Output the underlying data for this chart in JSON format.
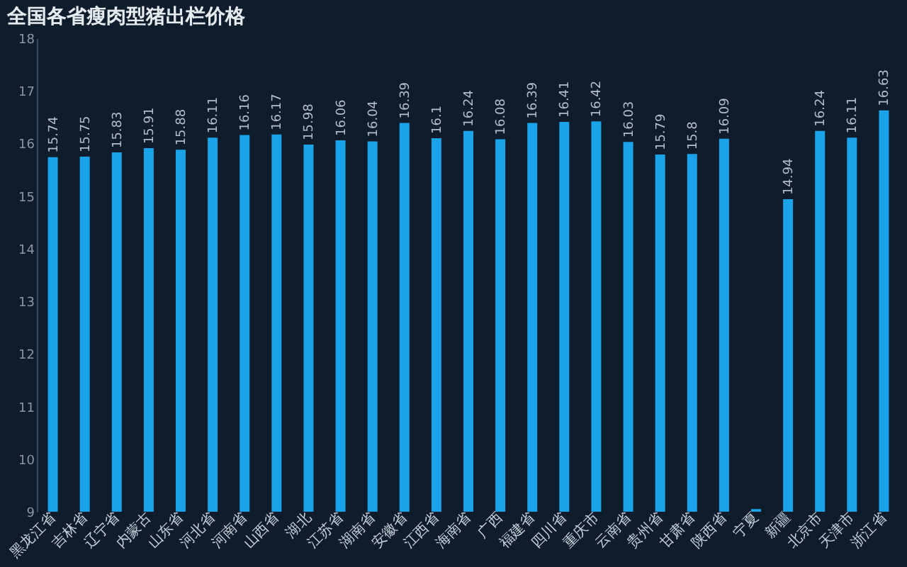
{
  "chart_data": {
    "type": "bar",
    "title": "全国各省瘦肉型猪出栏价格",
    "categories": [
      "黑龙江省",
      "吉林省",
      "辽宁省",
      "内蒙古",
      "山东省",
      "河北省",
      "河南省",
      "山西省",
      "湖北",
      "江苏省",
      "湖南省",
      "安徽省",
      "江西省",
      "海南省",
      "广西",
      "福建省",
      "四川省",
      "重庆市",
      "云南省",
      "贵州省",
      "甘肃省",
      "陕西省",
      "宁夏",
      "新疆",
      "北京市",
      "天津市",
      "浙江省"
    ],
    "values": [
      15.74,
      15.75,
      15.83,
      15.91,
      15.88,
      16.11,
      16.16,
      16.17,
      15.98,
      16.06,
      16.04,
      16.39,
      16.1,
      16.24,
      16.08,
      16.39,
      16.41,
      16.42,
      16.03,
      15.79,
      15.8,
      16.09,
      9.05,
      14.94,
      16.24,
      16.11,
      16.63
    ],
    "value_labels": [
      "15.74",
      "15.75",
      "15.83",
      "15.91",
      "15.88",
      "16.11",
      "16.16",
      "16.17",
      "15.98",
      "16.06",
      "16.04",
      "16.39",
      "16.1",
      "16.24",
      "16.08",
      "16.39",
      "16.41",
      "16.42",
      "16.03",
      "15.79",
      "15.8",
      "16.09",
      null,
      "14.94",
      "16.24",
      "16.11",
      "16.63"
    ],
    "color": "#1aa3e8",
    "ylim": [
      9,
      18
    ],
    "yticks": [
      9,
      10,
      11,
      12,
      13,
      14,
      15,
      16,
      17,
      18
    ],
    "grid": false
  }
}
